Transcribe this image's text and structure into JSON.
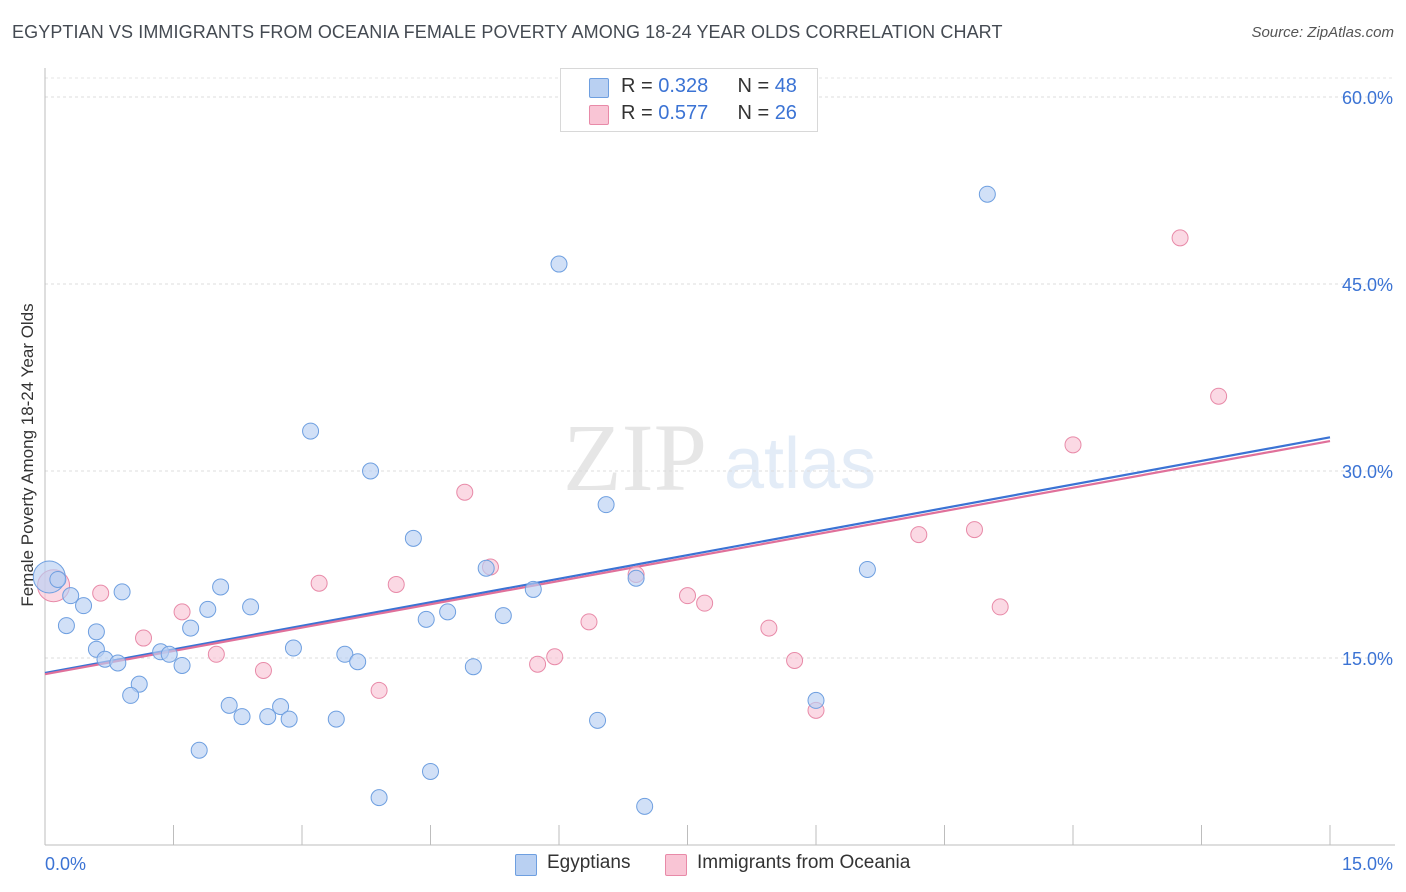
{
  "title": "EGYPTIAN VS IMMIGRANTS FROM OCEANIA FEMALE POVERTY AMONG 18-24 YEAR OLDS CORRELATION CHART",
  "source": "Source: ZipAtlas.com",
  "watermark": {
    "zip": "ZIP",
    "atlas": "atlas"
  },
  "legend_top": [
    {
      "r_label": "R = ",
      "r_value": "0.328",
      "n_label": "N = ",
      "n_value": "48",
      "fill": "#b9d0f2",
      "stroke": "#6e9fe0"
    },
    {
      "r_label": "R = ",
      "r_value": "0.577",
      "n_label": "N = ",
      "n_value": "26",
      "fill": "#f9c5d5",
      "stroke": "#e88aa8"
    }
  ],
  "legend_bottom": [
    {
      "label": "Egyptians",
      "fill": "#b9d0f2",
      "stroke": "#6e9fe0"
    },
    {
      "label": "Immigrants from Oceania",
      "fill": "#f9c5d5",
      "stroke": "#e88aa8"
    }
  ],
  "chart_data": {
    "type": "scatter",
    "title": "EGYPTIAN VS IMMIGRANTS FROM OCEANIA FEMALE POVERTY AMONG 18-24 YEAR OLDS CORRELATION CHART",
    "xlabel": "",
    "ylabel": "Female Poverty Among 18-24 Year Olds",
    "xlim": [
      0,
      15
    ],
    "ylim": [
      0,
      60
    ],
    "x_tick_labels": [
      "0.0%",
      "15.0%"
    ],
    "y_ticks": [
      15,
      30,
      45,
      60
    ],
    "y_tick_labels": [
      "15.0%",
      "30.0%",
      "45.0%",
      "60.0%"
    ],
    "grid": true,
    "colors": {
      "blue": "#3b73d4",
      "pink": "#e0709a",
      "blue_fill": "#b9d0f2",
      "pink_fill": "#f9c5d5",
      "tick_text": "#3b73d4"
    },
    "series": [
      {
        "name": "Egyptians",
        "R": 0.328,
        "N": 48,
        "color": "#3b73d4",
        "trend": {
          "x": [
            0,
            15
          ],
          "y": [
            13.8,
            32.7
          ]
        },
        "points": [
          [
            0.05,
            21.5
          ],
          [
            0.15,
            21.3
          ],
          [
            0.3,
            20.0
          ],
          [
            0.45,
            19.2
          ],
          [
            0.25,
            17.6
          ],
          [
            0.6,
            17.1
          ],
          [
            0.9,
            20.3
          ],
          [
            0.6,
            15.7
          ],
          [
            0.7,
            14.9
          ],
          [
            0.85,
            14.6
          ],
          [
            1.1,
            12.9
          ],
          [
            1.0,
            12.0
          ],
          [
            1.35,
            15.5
          ],
          [
            1.45,
            15.3
          ],
          [
            1.6,
            14.4
          ],
          [
            1.7,
            17.4
          ],
          [
            1.9,
            18.9
          ],
          [
            2.05,
            20.7
          ],
          [
            2.4,
            19.1
          ],
          [
            2.15,
            11.2
          ],
          [
            2.3,
            10.3
          ],
          [
            2.6,
            10.3
          ],
          [
            2.75,
            11.1
          ],
          [
            2.85,
            10.1
          ],
          [
            1.8,
            7.6
          ],
          [
            2.9,
            15.8
          ],
          [
            3.1,
            33.2
          ],
          [
            3.4,
            10.1
          ],
          [
            3.5,
            15.3
          ],
          [
            3.65,
            14.7
          ],
          [
            3.8,
            30.0
          ],
          [
            3.9,
            3.8
          ],
          [
            4.3,
            24.6
          ],
          [
            4.45,
            18.1
          ],
          [
            4.5,
            5.9
          ],
          [
            4.7,
            18.7
          ],
          [
            5.0,
            14.3
          ],
          [
            5.15,
            22.2
          ],
          [
            5.35,
            18.4
          ],
          [
            5.7,
            20.5
          ],
          [
            6.0,
            46.6
          ],
          [
            6.45,
            10.0
          ],
          [
            6.55,
            27.3
          ],
          [
            6.9,
            21.4
          ],
          [
            7.0,
            3.1
          ],
          [
            9.0,
            11.6
          ],
          [
            9.6,
            22.1
          ],
          [
            11.0,
            52.2
          ]
        ]
      },
      {
        "name": "Immigrants from Oceania",
        "R": 0.577,
        "N": 26,
        "color": "#e0709a",
        "trend": {
          "x": [
            0,
            15
          ],
          "y": [
            13.7,
            32.4
          ]
        },
        "points": [
          [
            0.1,
            20.8
          ],
          [
            0.65,
            20.2
          ],
          [
            1.15,
            16.6
          ],
          [
            1.6,
            18.7
          ],
          [
            2.0,
            15.3
          ],
          [
            2.55,
            14.0
          ],
          [
            3.2,
            21.0
          ],
          [
            3.9,
            12.4
          ],
          [
            4.1,
            20.9
          ],
          [
            4.9,
            28.3
          ],
          [
            5.2,
            22.3
          ],
          [
            5.75,
            14.5
          ],
          [
            5.95,
            15.1
          ],
          [
            6.35,
            17.9
          ],
          [
            6.9,
            21.7
          ],
          [
            7.5,
            20.0
          ],
          [
            7.7,
            19.4
          ],
          [
            8.45,
            17.4
          ],
          [
            8.75,
            14.8
          ],
          [
            9.0,
            10.8
          ],
          [
            10.2,
            24.9
          ],
          [
            10.85,
            25.3
          ],
          [
            11.15,
            19.1
          ],
          [
            12.0,
            32.1
          ],
          [
            13.25,
            48.7
          ],
          [
            13.7,
            36.0
          ]
        ]
      }
    ]
  }
}
